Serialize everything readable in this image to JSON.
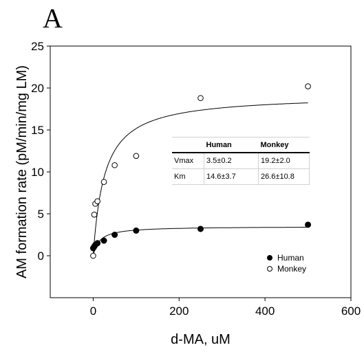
{
  "panel_label": "A",
  "chart_data": {
    "type": "scatter",
    "xlabel": "d-MA, uM",
    "ylabel": "AM formation rate (pM/min/mg LM)",
    "xlim": [
      -100,
      600
    ],
    "ylim": [
      -5,
      25
    ],
    "xticks": [
      0,
      200,
      400,
      600
    ],
    "yticks": [
      0,
      5,
      10,
      15,
      20,
      25
    ],
    "xtick_labels": [
      "0",
      "200",
      "400",
      "600"
    ],
    "ytick_labels": [
      "0",
      "5",
      "10",
      "15",
      "20",
      "25"
    ],
    "grid": false,
    "legend_position": "bottom-right",
    "series": [
      {
        "name": "Human",
        "marker": "filled-circle",
        "color": "#000000",
        "x": [
          0,
          2.5,
          5,
          10,
          25,
          50,
          100,
          250,
          500
        ],
        "y": [
          0.9,
          1.1,
          1.3,
          1.5,
          1.8,
          2.5,
          3.0,
          3.2,
          3.7
        ],
        "fit": {
          "model": "michaelis-menten",
          "vmax": 3.5,
          "km": 14.6
        }
      },
      {
        "name": "Monkey",
        "marker": "open-circle",
        "color": "#000000",
        "x": [
          0,
          2.5,
          5,
          10,
          25,
          50,
          100,
          250,
          500
        ],
        "y": [
          0,
          4.9,
          6.2,
          6.5,
          8.8,
          10.8,
          11.9,
          18.8,
          20.2
        ],
        "fit": {
          "model": "michaelis-menten",
          "vmax": 19.2,
          "km": 26.6
        }
      }
    ],
    "table": {
      "headers": [
        "",
        "Human",
        "Monkey"
      ],
      "rows": [
        [
          "Vmax",
          "3.5±0.2",
          "19.2±2.0"
        ],
        [
          "Km",
          "14.6±3.7",
          "26.6±10.8"
        ]
      ]
    }
  }
}
